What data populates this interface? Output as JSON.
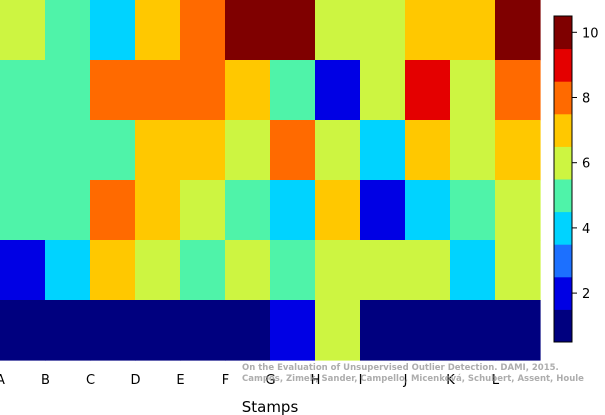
{
  "chart_data": {
    "type": "heatmap",
    "xlabel": "Stamps",
    "ylabel": "",
    "title": "",
    "columns": [
      "A",
      "B",
      "C",
      "D",
      "E",
      "F",
      "G",
      "H",
      "I",
      "J",
      "K",
      "L"
    ],
    "rows_top_to_bottom": [
      [
        5,
        4,
        3,
        6,
        7,
        10,
        9,
        5,
        5,
        6,
        6,
        9
      ],
      [
        4,
        4,
        7,
        7,
        7,
        6,
        4,
        1,
        5,
        8,
        5,
        7
      ],
      [
        4,
        4,
        4,
        6,
        6,
        5,
        7,
        5,
        3,
        6,
        5,
        6
      ],
      [
        4,
        4,
        7,
        6,
        5,
        4,
        3,
        6,
        1,
        3,
        4,
        5
      ],
      [
        1,
        3,
        6,
        5,
        4,
        5,
        4,
        5,
        5,
        5,
        3,
        5
      ],
      [
        0,
        0,
        0,
        0,
        0,
        0,
        1,
        5,
        0,
        0,
        0,
        0
      ]
    ],
    "colorbar": {
      "ticks": [
        2,
        4,
        6,
        8,
        10
      ],
      "levels": 11,
      "colors": [
        "#00007f",
        "#0000e4",
        "#1c70ff",
        "#00d3ff",
        "#4ff3a9",
        "#cdf541",
        "#ffc800",
        "#ff6a00",
        "#e40000",
        "#7f0000"
      ]
    },
    "legend_position": "right",
    "grid": false
  },
  "watermark": {
    "line1": "On the Evaluation of Unsupervised Outlier Detection. DAMI, 2015.",
    "line2": "Campos, Zimek, Sander, Campello, Micenková, Schubert, Assent, Houle"
  }
}
